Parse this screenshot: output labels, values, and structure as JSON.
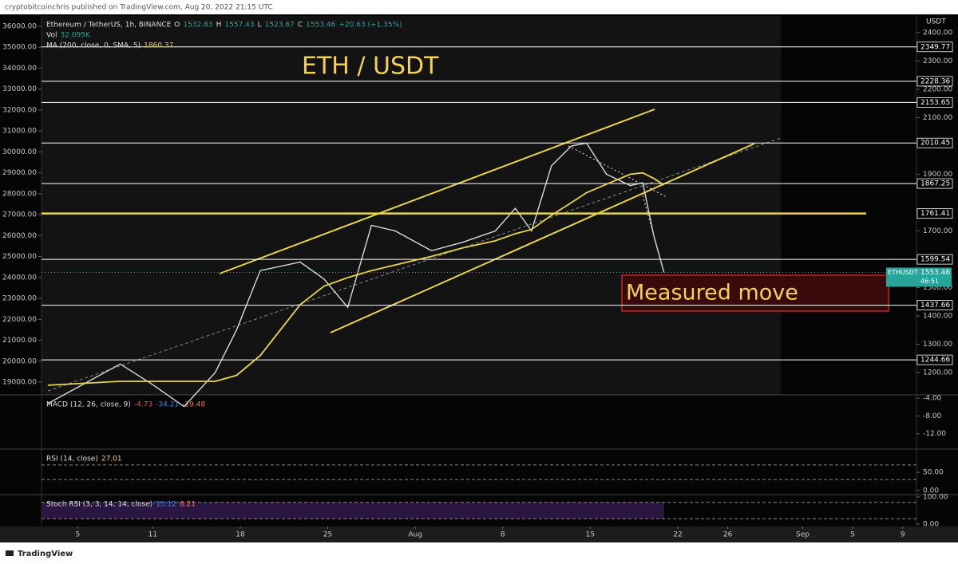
{
  "chart_data": {
    "type": "line",
    "publisher": "cryptobitcoinchris published on TradingView.com, Aug 20, 2022 21:15 UTC",
    "title": "ETH / USDT",
    "annotation": "Measured move",
    "ohlc": [
      {
        "label": "O",
        "value": 1532.83
      },
      {
        "label": "H",
        "value": 1557.43
      },
      {
        "label": "L",
        "value": 1523.67
      },
      {
        "label": "C",
        "value": 1553.46
      }
    ],
    "change": "+20.63 (+1.35%)",
    "volume_label": "Vol",
    "volume": "32.095K",
    "currency": "USDT",
    "x": [
      2.6,
      8.4,
      10.9,
      13.5,
      16,
      17.7,
      19.6,
      22.8,
      24.7,
      26.6,
      28.5,
      30.4,
      33.3,
      35.8,
      38.4,
      40,
      41.3,
      42.9,
      44.5,
      45.7,
      47.3,
      49.2,
      50.2,
      51.1,
      51.9
    ],
    "series": [
      {
        "name": "Ethereum / TetherUS, 1h, BINANCE",
        "color": "#d9d9d9",
        "values": [
          1090,
          1230,
          1160,
          1080,
          1200,
          1350,
          1560,
          1590,
          1530,
          1430,
          1720,
          1700,
          1630,
          1660,
          1700,
          1780,
          1700,
          1930,
          2000,
          2010,
          1900,
          1860,
          1870,
          1680,
          1553
        ]
      },
      {
        "name": "MA (200, close, 0, SMA, 5)",
        "color": "#e8d44d",
        "last": 1860.37,
        "values": [
          1155,
          1169,
          1169,
          1169,
          1169,
          1190,
          1260,
          1440,
          1505,
          1535,
          1560,
          1580,
          1610,
          1640,
          1665,
          1690,
          1705,
          1755,
          1800,
          1835,
          1865,
          1900,
          1905,
          1885,
          1862
        ]
      }
    ],
    "xlim": [
      2.1,
      72.1
    ],
    "xticks": [
      {
        "value": 5,
        "label": "5"
      },
      {
        "value": 11,
        "label": "11"
      },
      {
        "value": 18,
        "label": "18"
      },
      {
        "value": 25,
        "label": "25"
      },
      {
        "value": 32,
        "label": "Aug"
      },
      {
        "value": 39,
        "label": "8"
      },
      {
        "value": 46,
        "label": "15"
      },
      {
        "value": 53,
        "label": "22"
      },
      {
        "value": 57,
        "label": "26"
      },
      {
        "value": 63,
        "label": "Sep"
      },
      {
        "value": 67,
        "label": "5"
      },
      {
        "value": 71,
        "label": "9"
      }
    ],
    "ylim": [
      1121,
      2459
    ],
    "yticks": [
      {
        "value": 2400,
        "label": "2400.00"
      },
      {
        "value": 2300,
        "label": "2300.00"
      },
      {
        "value": 2200,
        "label": "2200.00"
      },
      {
        "value": 2100,
        "label": "2100.00"
      },
      {
        "value": 1900,
        "label": "1900.00"
      },
      {
        "value": 1700,
        "label": "1700.00"
      },
      {
        "value": 1500,
        "label": "1500.00"
      },
      {
        "value": 1400,
        "label": "1400.00"
      },
      {
        "value": 1300,
        "label": "1300.00"
      },
      {
        "value": 1200,
        "label": "1200.00"
      }
    ],
    "y2lim": [
      18390,
      36495
    ],
    "y2ticks": [
      {
        "value": 36000,
        "label": "36000.00"
      },
      {
        "value": 35000,
        "label": "35000.00"
      },
      {
        "value": 34000,
        "label": "34000.00"
      },
      {
        "value": 33000,
        "label": "33000.00"
      },
      {
        "value": 32000,
        "label": "32000.00"
      },
      {
        "value": 31000,
        "label": "31000.00"
      },
      {
        "value": 30000,
        "label": "30000.00"
      },
      {
        "value": 29000,
        "label": "29000.00"
      },
      {
        "value": 28000,
        "label": "28000.00"
      },
      {
        "value": 27000,
        "label": "27000.00"
      },
      {
        "value": 26000,
        "label": "26000.00"
      },
      {
        "value": 25000,
        "label": "25000.00"
      },
      {
        "value": 24000,
        "label": "24000.00"
      },
      {
        "value": 23000,
        "label": "23000.00"
      },
      {
        "value": 22000,
        "label": "22000.00"
      },
      {
        "value": 21000,
        "label": "21000.00"
      },
      {
        "value": 20000,
        "label": "20000.00"
      },
      {
        "value": 19000,
        "label": "19000.00"
      }
    ],
    "levels": [
      {
        "value": 2349.77,
        "color": "#ffffff"
      },
      {
        "value": 2228.36,
        "color": "#ffffff"
      },
      {
        "value": 2153.65,
        "color": "#ffffff"
      },
      {
        "value": 2010.45,
        "color": "#ffffff"
      },
      {
        "value": 1867.25,
        "color": "#ffffff"
      },
      {
        "value": 1761.41,
        "color": "#e8d44d"
      },
      {
        "value": 1599.54,
        "color": "#ffffff"
      },
      {
        "value": 1437.66,
        "color": "#ffffff"
      },
      {
        "value": 1244.66,
        "color": "#ffffff"
      }
    ],
    "last_price": {
      "name": "ETHUSDT",
      "value": 1553.46,
      "countdown": "46:51",
      "color": "#26a69a"
    },
    "indicators": [
      {
        "name": "MACD (12, 26, close, 9)",
        "readings": [
          -4.73,
          -34.21,
          -29.48
        ],
        "colors": [
          "#f05656",
          "#2a8df5",
          "#f07a5a"
        ],
        "ylim": [
          -15.45,
          -3.27
        ],
        "yticks": [
          {
            "value": -4,
            "label": "-4.00"
          },
          {
            "value": -8,
            "label": "-8.00"
          },
          {
            "value": -12,
            "label": "-12.00"
          }
        ]
      },
      {
        "name": "RSI (14, close)",
        "readings": [
          27.01
        ],
        "colors": [
          "#e8d44d"
        ],
        "ylim": [
          -11.4,
          113.6
        ],
        "yticks": [
          {
            "value": 50,
            "label": "50.00"
          },
          {
            "value": 0,
            "label": "0.00"
          }
        ],
        "bands": [
          70,
          30
        ]
      },
      {
        "name": "Stoch RSI (3, 3, 14, 14, close)",
        "readings": [
          15.12,
          6.21
        ],
        "colors": [
          "#2a8df5",
          "#f07a5a"
        ],
        "ylim": [
          -8.8,
          108.8
        ],
        "yticks": [
          {
            "value": 100,
            "label": "100.00"
          },
          {
            "value": 0,
            "label": "0.00"
          }
        ],
        "bands": [
          80,
          20
        ]
      }
    ],
    "brand": "TradingView"
  }
}
